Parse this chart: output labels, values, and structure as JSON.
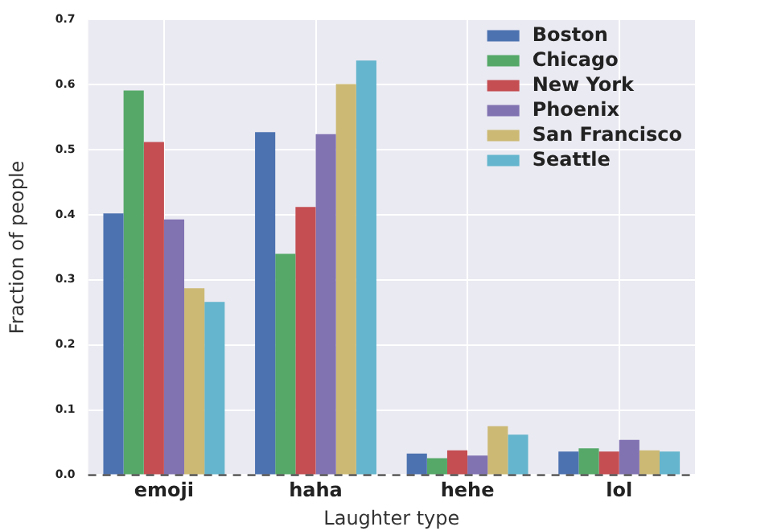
{
  "chart_data": {
    "type": "bar",
    "xlabel": "Laughter type",
    "ylabel": "Fraction of people",
    "categories": [
      "emoji",
      "haha",
      "hehe",
      "lol"
    ],
    "series": [
      {
        "name": "Boston",
        "color": "#4c72b0",
        "values": [
          0.402,
          0.527,
          0.033,
          0.036
        ]
      },
      {
        "name": "Chicago",
        "color": "#55a868",
        "values": [
          0.591,
          0.34,
          0.026,
          0.041
        ]
      },
      {
        "name": "New York",
        "color": "#c44e52",
        "values": [
          0.512,
          0.412,
          0.038,
          0.036
        ]
      },
      {
        "name": "Phoenix",
        "color": "#8172b2",
        "values": [
          0.393,
          0.524,
          0.03,
          0.054
        ]
      },
      {
        "name": "San Francisco",
        "color": "#ccb974",
        "values": [
          0.287,
          0.601,
          0.075,
          0.038
        ]
      },
      {
        "name": "Seattle",
        "color": "#64b5cd",
        "values": [
          0.266,
          0.637,
          0.062,
          0.036
        ]
      }
    ],
    "ylim": [
      0,
      0.7
    ],
    "yticks": [
      {
        "value": 0,
        "label": "0.0"
      },
      0.1,
      0.2,
      0.3,
      0.4,
      0.5,
      0.6,
      0.7
    ],
    "ref_lines": [
      {
        "axis": "y",
        "value": 0,
        "line_style": "dashed",
        "color": "#333333"
      }
    ],
    "grid": true,
    "legend": "top right"
  }
}
